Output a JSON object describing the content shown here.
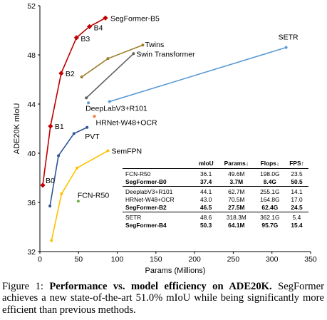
{
  "chart_data": {
    "type": "line",
    "xlabel": "Params (Millions)",
    "ylabel": "ADE20K mIoU",
    "xlim": [
      0,
      350
    ],
    "ylim": [
      32,
      52
    ],
    "xticks": [
      "0",
      "50",
      "100",
      "150",
      "200",
      "250",
      "300",
      "350"
    ],
    "yticks": [
      "32",
      "36",
      "40",
      "44",
      "48",
      "52"
    ],
    "grid": false,
    "series": [
      {
        "name": "SegFormer",
        "color": "#c00000",
        "marker": "diamond",
        "points": [
          [
            3.7,
            37.4
          ],
          [
            13.7,
            42.2
          ],
          [
            27.5,
            46.5
          ],
          [
            47.3,
            49.4
          ],
          [
            64.1,
            50.3
          ],
          [
            84.7,
            51.0
          ]
        ],
        "point_labels": [
          "B0",
          "B1",
          "B2",
          "B3",
          "B4",
          "SegFormer-B5"
        ]
      },
      {
        "name": "Twins",
        "color": "#9c7e28",
        "marker": "circle",
        "points": [
          [
            54,
            46.2
          ],
          [
            88,
            47.7
          ],
          [
            133,
            48.8
          ]
        ],
        "end_label": "Twins"
      },
      {
        "name": "Swin Transformer",
        "color": "#606060",
        "marker": "circle",
        "points": [
          [
            60,
            44.5
          ],
          [
            121,
            48.1
          ]
        ],
        "end_label": "Swin Transformer"
      },
      {
        "name": "SETR",
        "color": "#5b9bd5",
        "marker": "circle",
        "points": [
          [
            90,
            44.2
          ],
          [
            318.3,
            48.6
          ]
        ],
        "end_label": "SETR"
      },
      {
        "name": "PVT",
        "color": "#2f5597",
        "marker": "circle",
        "points": [
          [
            13,
            35.7
          ],
          [
            24,
            39.8
          ],
          [
            44,
            41.6
          ],
          [
            61,
            42.1
          ]
        ],
        "end_label": "PVT"
      },
      {
        "name": "SemFPN",
        "color": "#ffc000",
        "marker": "circle",
        "points": [
          [
            15,
            32.9
          ],
          [
            28,
            36.7
          ],
          [
            48,
            38.8
          ],
          [
            88,
            40.2
          ]
        ],
        "end_label": "SemFPN"
      }
    ],
    "single_points": [
      {
        "label": "DeepLabV3+R101",
        "x": 62.7,
        "y": 44.1,
        "color": "#5b9bd5"
      },
      {
        "label": "HRNet-W48+OCR",
        "x": 70.5,
        "y": 43.0,
        "color": "#ed7d31"
      },
      {
        "label": "FCN-R50",
        "x": 49.6,
        "y": 36.1,
        "color": "#70ad47"
      }
    ]
  },
  "table": {
    "headers": [
      "",
      "mIoU",
      "Params↓",
      "Flops↓",
      "FPS↑"
    ],
    "groups": [
      [
        {
          "model": "FCN-R50",
          "miou": "36.1",
          "params": "49.6M",
          "flops": "198.0G",
          "fps": "23.5",
          "ours": false
        },
        {
          "model": "SegFormer-B0",
          "miou": "37.4",
          "params": "3.7M",
          "flops": "8.4G",
          "fps": "50.5",
          "ours": true
        }
      ],
      [
        {
          "model": "DeeplabV3+R101",
          "miou": "44.1",
          "params": "62.7M",
          "flops": "255.1G",
          "fps": "14.1",
          "ours": false
        },
        {
          "model": "HRNet-W48+OCR",
          "miou": "43.0",
          "params": "70.5M",
          "flops": "164.8G",
          "fps": "17.0",
          "ours": false
        },
        {
          "model": "SegFormer-B2",
          "miou": "46.5",
          "params": "27.5M",
          "flops": "62.4G",
          "fps": "24.5",
          "ours": true
        }
      ],
      [
        {
          "model": "SETR",
          "miou": "48.6",
          "params": "318.3M",
          "flops": "362.1G",
          "fps": "5.4",
          "ours": false
        },
        {
          "model": "SegFormer-B4",
          "miou": "50.3",
          "params": "64.1M",
          "flops": "95.7G",
          "fps": "15.4",
          "ours": true
        }
      ]
    ]
  },
  "caption": {
    "prefix": "Figure 1: ",
    "bold": "Performance vs. model efficiency on ADE20K.",
    "rest": " SegFormer achieves a new state-of-the-art 51.0% mIoU while being significantly more efficient than previous methods."
  }
}
